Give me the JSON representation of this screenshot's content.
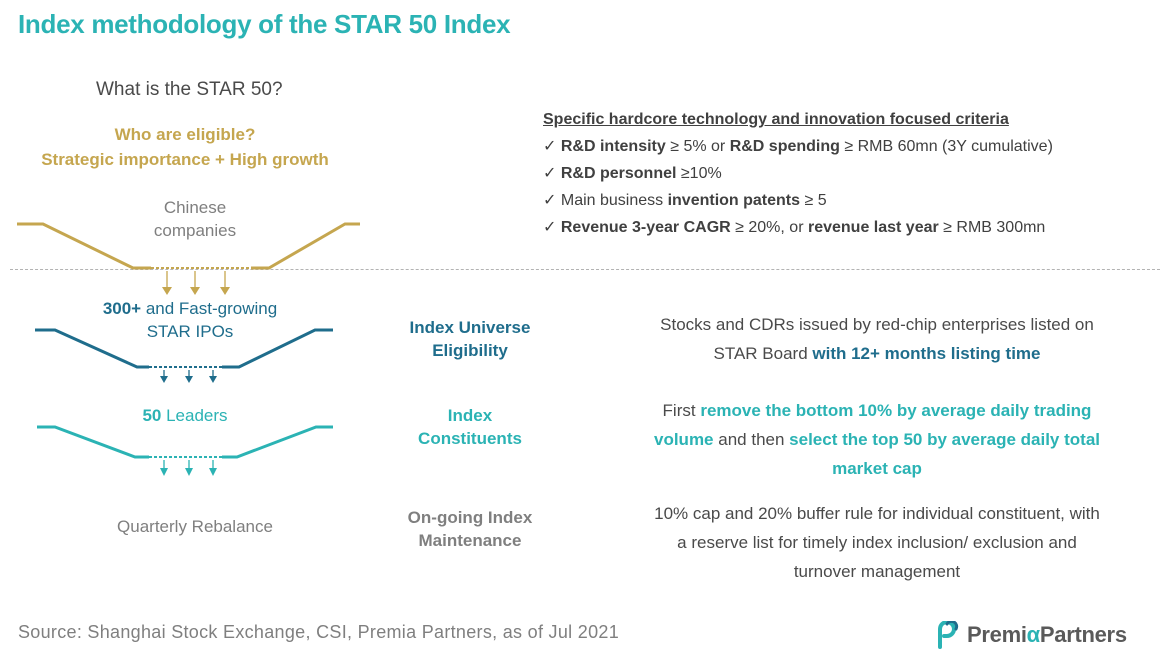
{
  "title": "Index methodology of the STAR 50 Index",
  "left": {
    "question": "What is the STAR 50?",
    "eligible_line1": "Who are eligible?",
    "eligible_line2": "Strategic importance + High growth",
    "chinese_line1": "Chinese",
    "chinese_line2": "companies",
    "ipo_bold": "300+",
    "ipo_rest": " and Fast-growing",
    "ipo_line2": "STAR IPOs",
    "leaders_bold": "50",
    "leaders_rest": " Leaders",
    "rebalance": "Quarterly Rebalance"
  },
  "criteria": {
    "heading": "Specific hardcore technology and innovation focused criteria",
    "check": "✓",
    "items": [
      {
        "b1": "R&D intensity",
        "t1": " ≥ 5% or ",
        "b2": "R&D spending",
        "t2": " ≥ RMB 60mn (3Y cumulative)"
      },
      {
        "b1": "R&D personnel",
        "t1": " ≥10%",
        "b2": "",
        "t2": ""
      },
      {
        "t0": "Main business ",
        "b1": "invention patents",
        "t1": " ≥ 5",
        "b2": "",
        "t2": ""
      },
      {
        "b1": "Revenue 3-year CAGR",
        "t1": " ≥ 20%, or ",
        "b2": "revenue last year",
        "t2": " ≥ RMB 300mn"
      }
    ]
  },
  "steps": [
    {
      "label_line1": "Index Universe",
      "label_line2": "Eligibility",
      "desc_a": "Stocks and CDRs issued by red-chip enterprises listed on",
      "desc_b": "STAR Board ",
      "desc_bold": "with 12+ months listing time"
    },
    {
      "label_line1": "Index",
      "label_line2": "Constituents",
      "desc_a": "First ",
      "desc_bold1": "remove the bottom 10% by average daily trading",
      "desc_bold2": "volume",
      "desc_b": " and then ",
      "desc_bold3": "select the top 50 by average daily total",
      "desc_bold4": "market cap"
    },
    {
      "label_line1": "On-going Index",
      "label_line2": "Maintenance",
      "desc_line1": "10% cap and 20% buffer rule for individual constituent, with",
      "desc_line2": "a reserve list for timely index inclusion/ exclusion and",
      "desc_line3": "turnover management"
    }
  ],
  "source": "Source: Shanghai Stock Exchange, CSI, Premia Partners, as of Jul 2021",
  "logo": {
    "text_part1": "Premi",
    "text_alpha": "α",
    "text_part2": "Partners"
  },
  "colors": {
    "title": "#2bb3b4",
    "gold": "#c5a64f",
    "dark_teal": "#1f6d8c",
    "teal": "#2bb3b4",
    "gray": "#7f7f7f"
  }
}
